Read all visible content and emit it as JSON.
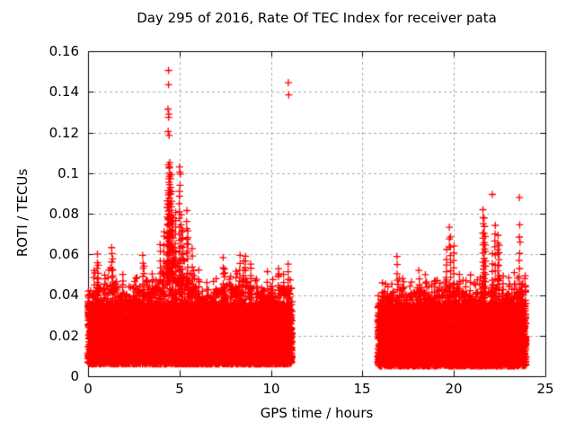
{
  "chart_data": {
    "type": "scatter",
    "title": "Day 295 of 2016, Rate Of TEC Index for receiver pata",
    "xlabel": "GPS time / hours",
    "ylabel": "ROTI / TECUs",
    "xlim": [
      0,
      25
    ],
    "ylim": [
      0,
      0.16
    ],
    "xticks": [
      0,
      5,
      10,
      15,
      20,
      25
    ],
    "xtick_labels": [
      "0",
      "5",
      "10",
      "15",
      "20",
      "25"
    ],
    "yticks": [
      0,
      0.02,
      0.04,
      0.06,
      0.08,
      0.1,
      0.12,
      0.14,
      0.16
    ],
    "ytick_labels": [
      "0",
      "0.02",
      "0.04",
      "0.06",
      "0.08",
      "0.1",
      "0.12",
      "0.14",
      "0.16"
    ],
    "grid": true,
    "legend": "none",
    "marker": "plus",
    "colors": {
      "points": "#ff0000",
      "axis": "#000000",
      "grid": "#a8a8a8",
      "text": "#000000",
      "background": "#ffffff"
    },
    "series": [
      {
        "name": "ROTI",
        "segments": [
          {
            "x_start": 0.0,
            "x_end": 11.15,
            "y_floor": 0.006,
            "envelope": [
              [
                0,
                0.04
              ],
              [
                0.4,
                0.047
              ],
              [
                0.8,
                0.043
              ],
              [
                1.2,
                0.047
              ],
              [
                1.6,
                0.043
              ],
              [
                2.0,
                0.041
              ],
              [
                2.4,
                0.039
              ],
              [
                2.8,
                0.044
              ],
              [
                3.2,
                0.042
              ],
              [
                3.6,
                0.043
              ],
              [
                4.0,
                0.05
              ],
              [
                4.35,
                0.058
              ],
              [
                4.65,
                0.06
              ],
              [
                4.95,
                0.055
              ],
              [
                5.2,
                0.05
              ],
              [
                5.6,
                0.048
              ],
              [
                6.0,
                0.043
              ],
              [
                6.4,
                0.039
              ],
              [
                6.8,
                0.041
              ],
              [
                7.2,
                0.043
              ],
              [
                7.6,
                0.045
              ],
              [
                8.0,
                0.044
              ],
              [
                8.4,
                0.047
              ],
              [
                8.8,
                0.046
              ],
              [
                9.2,
                0.042
              ],
              [
                9.6,
                0.04
              ],
              [
                10.0,
                0.042
              ],
              [
                10.4,
                0.044
              ],
              [
                10.8,
                0.043
              ],
              [
                11.15,
                0.045
              ]
            ]
          },
          {
            "x_start": 15.85,
            "x_end": 23.95,
            "y_floor": 0.005,
            "envelope": [
              [
                15.85,
                0.04
              ],
              [
                16.2,
                0.042
              ],
              [
                16.6,
                0.041
              ],
              [
                17.0,
                0.044
              ],
              [
                17.4,
                0.04
              ],
              [
                17.8,
                0.041
              ],
              [
                18.2,
                0.043
              ],
              [
                18.6,
                0.04
              ],
              [
                19.0,
                0.042
              ],
              [
                19.4,
                0.041
              ],
              [
                19.8,
                0.046
              ],
              [
                20.2,
                0.044
              ],
              [
                20.6,
                0.041
              ],
              [
                21.0,
                0.04
              ],
              [
                21.4,
                0.044
              ],
              [
                21.8,
                0.042
              ],
              [
                22.2,
                0.044
              ],
              [
                22.6,
                0.043
              ],
              [
                23.0,
                0.04
              ],
              [
                23.4,
                0.042
              ],
              [
                23.95,
                0.045
              ]
            ]
          }
        ],
        "spike_columns": [
          [
            0.5,
            0.06,
            0.034
          ],
          [
            0.55,
            0.055,
            0.03
          ],
          [
            0.9,
            0.05,
            0.03
          ],
          [
            1.3,
            0.063,
            0.034
          ],
          [
            1.35,
            0.057,
            0.03
          ],
          [
            1.9,
            0.051,
            0.032
          ],
          [
            2.6,
            0.048,
            0.03
          ],
          [
            3.0,
            0.06,
            0.033
          ],
          [
            3.07,
            0.054,
            0.03
          ],
          [
            3.5,
            0.05,
            0.03
          ],
          [
            3.95,
            0.065,
            0.032
          ],
          [
            4.15,
            0.072,
            0.035
          ],
          [
            4.33,
            0.086,
            0.045
          ],
          [
            4.38,
            0.092,
            0.05
          ],
          [
            4.42,
            0.098,
            0.05
          ],
          [
            4.45,
            0.106,
            0.042
          ],
          [
            4.52,
            0.1,
            0.05
          ],
          [
            4.58,
            0.09,
            0.04
          ],
          [
            4.65,
            0.078,
            0.036
          ],
          [
            4.78,
            0.08,
            0.04
          ],
          [
            5.0,
            0.088,
            0.04
          ],
          [
            5.1,
            0.079,
            0.038
          ],
          [
            5.18,
            0.071,
            0.036
          ],
          [
            5.4,
            0.081,
            0.06
          ],
          [
            5.45,
            0.072,
            0.035
          ],
          [
            5.7,
            0.062,
            0.032
          ],
          [
            6.05,
            0.052,
            0.03
          ],
          [
            6.5,
            0.046,
            0.03
          ],
          [
            7.0,
            0.048,
            0.03
          ],
          [
            7.4,
            0.058,
            0.03
          ],
          [
            7.47,
            0.052,
            0.028
          ],
          [
            7.8,
            0.05,
            0.03
          ],
          [
            8.1,
            0.052,
            0.03
          ],
          [
            8.3,
            0.06,
            0.032
          ],
          [
            8.5,
            0.056,
            0.03
          ],
          [
            8.62,
            0.06,
            0.034
          ],
          [
            8.9,
            0.056,
            0.03
          ],
          [
            9.2,
            0.048,
            0.03
          ],
          [
            9.5,
            0.044,
            0.028
          ],
          [
            9.8,
            0.051,
            0.03
          ],
          [
            10.1,
            0.047,
            0.03
          ],
          [
            10.4,
            0.053,
            0.03
          ],
          [
            10.7,
            0.05,
            0.028
          ],
          [
            10.95,
            0.055,
            0.032
          ],
          [
            11.05,
            0.048,
            0.03
          ],
          [
            16.1,
            0.046,
            0.03
          ],
          [
            16.4,
            0.044,
            0.028
          ],
          [
            16.9,
            0.058,
            0.032
          ],
          [
            17.2,
            0.048,
            0.03
          ],
          [
            17.6,
            0.044,
            0.028
          ],
          [
            18.1,
            0.052,
            0.03
          ],
          [
            18.45,
            0.049,
            0.03
          ],
          [
            18.8,
            0.045,
            0.028
          ],
          [
            19.1,
            0.047,
            0.03
          ],
          [
            19.6,
            0.062,
            0.035
          ],
          [
            19.74,
            0.0735,
            0.063
          ],
          [
            19.82,
            0.068,
            0.04
          ],
          [
            20.0,
            0.064,
            0.032
          ],
          [
            20.3,
            0.05,
            0.03
          ],
          [
            20.65,
            0.048,
            0.028
          ],
          [
            20.9,
            0.05,
            0.03
          ],
          [
            21.2,
            0.046,
            0.028
          ],
          [
            21.6,
            0.082,
            0.032
          ],
          [
            21.66,
            0.077,
            0.04
          ],
          [
            21.72,
            0.068,
            0.036
          ],
          [
            22.1,
            0.06,
            0.032
          ],
          [
            22.25,
            0.0745,
            0.04
          ],
          [
            22.4,
            0.07,
            0.045
          ],
          [
            22.46,
            0.065,
            0.036
          ],
          [
            22.7,
            0.05,
            0.03
          ],
          [
            23.0,
            0.048,
            0.028
          ],
          [
            23.3,
            0.05,
            0.03
          ],
          [
            23.58,
            0.06,
            0.035
          ],
          [
            23.75,
            0.046,
            0.028
          ],
          [
            23.9,
            0.05,
            0.032
          ]
        ],
        "outliers": [
          [
            4.4,
            0.1505
          ],
          [
            4.4,
            0.1435
          ],
          [
            4.37,
            0.1315
          ],
          [
            4.42,
            0.129
          ],
          [
            4.4,
            0.1275
          ],
          [
            4.38,
            0.1205
          ],
          [
            4.43,
            0.1185
          ],
          [
            4.4,
            0.104
          ],
          [
            4.43,
            0.1025
          ],
          [
            4.46,
            0.1
          ],
          [
            5.0,
            0.103
          ],
          [
            5.02,
            0.1005
          ],
          [
            5.05,
            0.0995
          ],
          [
            5.03,
            0.094
          ],
          [
            5.0,
            0.091
          ],
          [
            10.95,
            0.1445
          ],
          [
            10.97,
            0.1385
          ],
          [
            22.1,
            0.0895
          ],
          [
            23.58,
            0.088
          ],
          [
            23.6,
            0.0745
          ],
          [
            23.58,
            0.0685
          ],
          [
            23.62,
            0.066
          ]
        ]
      }
    ]
  }
}
